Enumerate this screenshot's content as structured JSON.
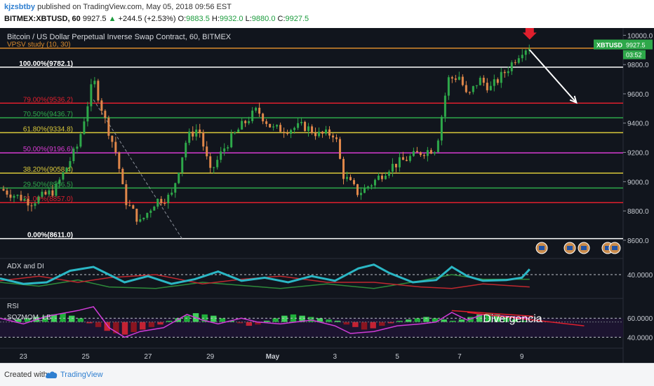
{
  "header": {
    "username": "kjzsbtby",
    "published_text": "published on TradingView.com, May 05, 2018 09:56 EST",
    "symbol_text": "BITMEX:XBTUSD, 60",
    "last": "9927.5",
    "change_arrow": "▲",
    "change": "+244.5 (+2.53%)",
    "o_label": "O:",
    "o_value": "9883.5",
    "h_label": "H:",
    "h_value": "9932.0",
    "l_label": "L:",
    "l_value": "9880.0",
    "c_label": "C:",
    "c_value": "9927.5"
  },
  "footer": {
    "created_with": "Created with",
    "brand": "TradingView"
  },
  "colors": {
    "background": "#11151d",
    "up_candle": "#2ea84a",
    "down_candle": "#e0874a",
    "fib_white": "#ffffff",
    "fib_red": "#e01f2d",
    "fib_green": "#2ea84a",
    "fib_yellow": "#d9c83a",
    "fib_magenta": "#d63bd1",
    "vpsv": "#d98a2c",
    "adx": "#2bb7c5",
    "rsi": "#d13cd8"
  },
  "chart_data": {
    "type": "line",
    "title": "Bitcoin / US Dollar Perpetual Inverse Swap Contract, 60, BITMEX",
    "study_label": "VPSV study (10, 30)",
    "price_tag": {
      "label": "XBTUSD",
      "value": "9927.5",
      "countdown": "03:52"
    },
    "ylim": [
      8480,
      10040
    ],
    "y_ticks": [
      10000,
      9800,
      9600,
      9400,
      9200,
      9000,
      8800,
      8600
    ],
    "y_tick_labels": [
      "10000.0",
      "9800.0",
      "9600.0",
      "9400.0",
      "9200.0",
      "9000.0",
      "8800.0",
      "8600.0"
    ],
    "x_tick_labels": [
      "23",
      "25",
      "27",
      "29",
      "May",
      "3",
      "5",
      "7",
      "9"
    ],
    "fib_levels": [
      {
        "label": "100.00%(9782.1)",
        "value": 9782.1,
        "color": "#ffffff"
      },
      {
        "label": "79.00%(9536.2)",
        "value": 9536.2,
        "color": "#e01f2d"
      },
      {
        "label": "70.50%(9436.7)",
        "value": 9436.7,
        "color": "#2ea84a"
      },
      {
        "label": "61.80%(9334.8)",
        "value": 9334.8,
        "color": "#d9c83a"
      },
      {
        "label": "50.00%(9196.6)",
        "value": 9196.6,
        "color": "#d63bd1"
      },
      {
        "label": "38.20%(9058.4)",
        "value": 9058.4,
        "color": "#d9c83a"
      },
      {
        "label": "29.50%(8956.5)",
        "value": 8956.5,
        "color": "#2ea84a"
      },
      {
        "label": "21.00%(8857.0)",
        "value": 8857.0,
        "color": "#e01f2d"
      },
      {
        "label": "0.00%(8611.0)",
        "value": 8611.0,
        "color": "#ffffff"
      }
    ],
    "vpsv_level": 9912,
    "price_path": [
      {
        "x": 0,
        "y": 8950
      },
      {
        "x": 8,
        "y": 8860
      },
      {
        "x": 14,
        "y": 8940
      },
      {
        "x": 20,
        "y": 9250
      },
      {
        "x": 24,
        "y": 9700
      },
      {
        "x": 27,
        "y": 9420
      },
      {
        "x": 30,
        "y": 9180
      },
      {
        "x": 32,
        "y": 8880
      },
      {
        "x": 36,
        "y": 8720
      },
      {
        "x": 40,
        "y": 8870
      },
      {
        "x": 44,
        "y": 8900
      },
      {
        "x": 48,
        "y": 9300
      },
      {
        "x": 51,
        "y": 9370
      },
      {
        "x": 54,
        "y": 9060
      },
      {
        "x": 58,
        "y": 9250
      },
      {
        "x": 62,
        "y": 9380
      },
      {
        "x": 66,
        "y": 9490
      },
      {
        "x": 70,
        "y": 9360
      },
      {
        "x": 74,
        "y": 9360
      },
      {
        "x": 78,
        "y": 9380
      },
      {
        "x": 82,
        "y": 9320
      },
      {
        "x": 86,
        "y": 9330
      },
      {
        "x": 88,
        "y": 9050
      },
      {
        "x": 92,
        "y": 8920
      },
      {
        "x": 96,
        "y": 9000
      },
      {
        "x": 100,
        "y": 9100
      },
      {
        "x": 104,
        "y": 9150
      },
      {
        "x": 108,
        "y": 9200
      },
      {
        "x": 112,
        "y": 9230
      },
      {
        "x": 115,
        "y": 9700
      },
      {
        "x": 118,
        "y": 9720
      },
      {
        "x": 120,
        "y": 9570
      },
      {
        "x": 123,
        "y": 9700
      },
      {
        "x": 126,
        "y": 9640
      },
      {
        "x": 130,
        "y": 9760
      },
      {
        "x": 134,
        "y": 9900
      },
      {
        "x": 136,
        "y": 9927
      }
    ],
    "projection": {
      "from": {
        "x": 136,
        "y": 9900
      },
      "to": {
        "x": 148,
        "y": 9540
      }
    },
    "adx": {
      "label": "ADX and DI",
      "level_label": "40.0000",
      "level": 40,
      "ylim": [
        10,
        60
      ],
      "adx_path": [
        {
          "x": 0,
          "y": 35
        },
        {
          "x": 6,
          "y": 28
        },
        {
          "x": 12,
          "y": 30
        },
        {
          "x": 18,
          "y": 45
        },
        {
          "x": 24,
          "y": 50
        },
        {
          "x": 28,
          "y": 40
        },
        {
          "x": 32,
          "y": 30
        },
        {
          "x": 38,
          "y": 38
        },
        {
          "x": 44,
          "y": 28
        },
        {
          "x": 50,
          "y": 34
        },
        {
          "x": 56,
          "y": 44
        },
        {
          "x": 62,
          "y": 32
        },
        {
          "x": 68,
          "y": 36
        },
        {
          "x": 74,
          "y": 30
        },
        {
          "x": 80,
          "y": 38
        },
        {
          "x": 86,
          "y": 32
        },
        {
          "x": 92,
          "y": 48
        },
        {
          "x": 96,
          "y": 53
        },
        {
          "x": 100,
          "y": 42
        },
        {
          "x": 106,
          "y": 30
        },
        {
          "x": 112,
          "y": 33
        },
        {
          "x": 116,
          "y": 50
        },
        {
          "x": 120,
          "y": 38
        },
        {
          "x": 124,
          "y": 32
        },
        {
          "x": 130,
          "y": 33
        },
        {
          "x": 134,
          "y": 36
        },
        {
          "x": 136,
          "y": 47
        }
      ],
      "di_plus_path": [
        {
          "x": 0,
          "y": 30
        },
        {
          "x": 10,
          "y": 25
        },
        {
          "x": 20,
          "y": 33
        },
        {
          "x": 28,
          "y": 24
        },
        {
          "x": 40,
          "y": 22
        },
        {
          "x": 52,
          "y": 30
        },
        {
          "x": 62,
          "y": 26
        },
        {
          "x": 72,
          "y": 22
        },
        {
          "x": 84,
          "y": 28
        },
        {
          "x": 96,
          "y": 22
        },
        {
          "x": 108,
          "y": 32
        },
        {
          "x": 116,
          "y": 40
        },
        {
          "x": 124,
          "y": 34
        },
        {
          "x": 136,
          "y": 34
        }
      ],
      "di_minus_path": [
        {
          "x": 0,
          "y": 32
        },
        {
          "x": 10,
          "y": 38
        },
        {
          "x": 20,
          "y": 30
        },
        {
          "x": 28,
          "y": 36
        },
        {
          "x": 40,
          "y": 40
        },
        {
          "x": 52,
          "y": 28
        },
        {
          "x": 62,
          "y": 34
        },
        {
          "x": 72,
          "y": 38
        },
        {
          "x": 84,
          "y": 30
        },
        {
          "x": 96,
          "y": 30
        },
        {
          "x": 108,
          "y": 24
        },
        {
          "x": 116,
          "y": 22
        },
        {
          "x": 124,
          "y": 28
        },
        {
          "x": 136,
          "y": 24
        }
      ]
    },
    "rsi": {
      "label": "RSI",
      "sqz_label": "SQZMOM_LB",
      "level_labels": [
        "60.0000",
        "40.0000"
      ],
      "levels": [
        60,
        40
      ],
      "ylim": [
        30,
        80
      ],
      "rsi_path": [
        {
          "x": 0,
          "y": 60
        },
        {
          "x": 6,
          "y": 54
        },
        {
          "x": 12,
          "y": 62
        },
        {
          "x": 20,
          "y": 68
        },
        {
          "x": 24,
          "y": 72
        },
        {
          "x": 28,
          "y": 50
        },
        {
          "x": 32,
          "y": 40
        },
        {
          "x": 36,
          "y": 46
        },
        {
          "x": 42,
          "y": 50
        },
        {
          "x": 48,
          "y": 64
        },
        {
          "x": 52,
          "y": 58
        },
        {
          "x": 56,
          "y": 54
        },
        {
          "x": 62,
          "y": 60
        },
        {
          "x": 66,
          "y": 56
        },
        {
          "x": 72,
          "y": 54
        },
        {
          "x": 80,
          "y": 58
        },
        {
          "x": 86,
          "y": 52
        },
        {
          "x": 90,
          "y": 44
        },
        {
          "x": 96,
          "y": 46
        },
        {
          "x": 102,
          "y": 52
        },
        {
          "x": 108,
          "y": 54
        },
        {
          "x": 112,
          "y": 56
        },
        {
          "x": 116,
          "y": 66
        },
        {
          "x": 120,
          "y": 58
        },
        {
          "x": 124,
          "y": 64
        },
        {
          "x": 130,
          "y": 62
        },
        {
          "x": 136,
          "y": 60
        }
      ],
      "momentum": [
        4,
        6,
        8,
        10,
        12,
        14,
        10,
        6,
        -2,
        -8,
        -14,
        -18,
        -20,
        -16,
        -12,
        -8,
        -4,
        2,
        6,
        10,
        14,
        12,
        10,
        6,
        2,
        -2,
        -6,
        -4,
        2,
        6,
        10,
        12,
        10,
        8,
        6,
        4,
        2,
        -4,
        -8,
        -12,
        -10,
        -6,
        -2,
        2,
        4,
        6,
        8,
        6,
        4,
        2,
        4,
        8,
        12,
        14,
        12,
        8,
        4,
        2
      ]
    },
    "divergence": {
      "label": "Divergencia",
      "rsi_line": {
        "from": {
          "x": 116,
          "y": 68
        },
        "to": {
          "x": 137,
          "y": 62
        }
      },
      "ext_line": {
        "from": {
          "x": 120,
          "y": 66
        },
        "to": {
          "x": 150,
          "y": 52
        }
      }
    },
    "grid": false
  }
}
